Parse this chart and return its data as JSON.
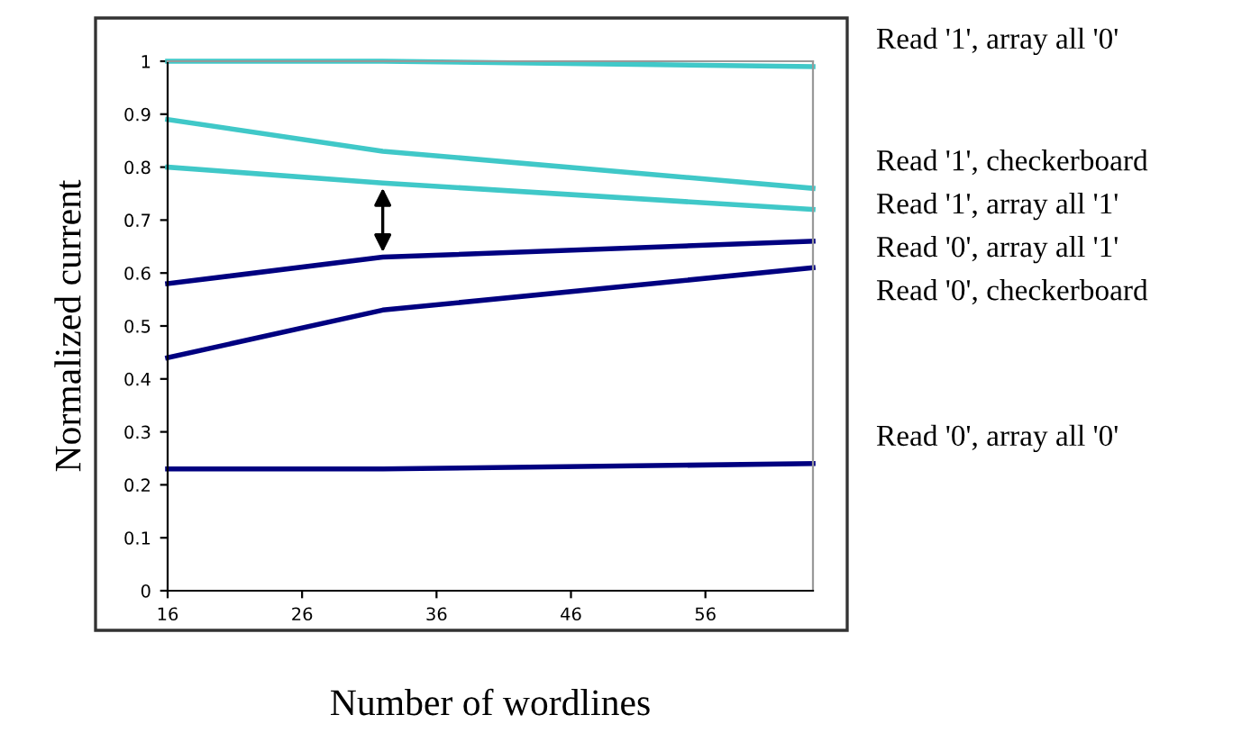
{
  "chart_data": {
    "type": "line",
    "xlabel": "Number of wordlines",
    "ylabel": "Normalized current",
    "x": [
      16,
      32,
      64
    ],
    "series": [
      {
        "name": "Read '1', array all '0'",
        "color": "#40c8c8",
        "values": [
          1.0,
          1.0,
          0.99
        ]
      },
      {
        "name": "Read '1', checkerboard",
        "color": "#40c8c8",
        "values": [
          0.89,
          0.83,
          0.76
        ]
      },
      {
        "name": "Read '1', array all '1'",
        "color": "#40c8c8",
        "values": [
          0.8,
          0.77,
          0.72
        ]
      },
      {
        "name": "Read '0', array all '1'",
        "color": "#000080",
        "values": [
          0.58,
          0.63,
          0.66
        ]
      },
      {
        "name": "Read '0', checkerboard",
        "color": "#000080",
        "values": [
          0.44,
          0.53,
          0.61
        ]
      },
      {
        "name": "Read '0', array all '0'",
        "color": "#000080",
        "values": [
          0.23,
          0.23,
          0.24
        ]
      }
    ],
    "xlim": [
      16,
      64
    ],
    "xticks": [
      16,
      26,
      36,
      46,
      56
    ],
    "ylim": [
      0,
      1
    ],
    "yticks": [
      0,
      0.1,
      0.2,
      0.3,
      0.4,
      0.5,
      0.6,
      0.7,
      0.8,
      0.9,
      1
    ],
    "grid": false,
    "legend": false,
    "marker": "none",
    "line_style": "solid"
  }
}
